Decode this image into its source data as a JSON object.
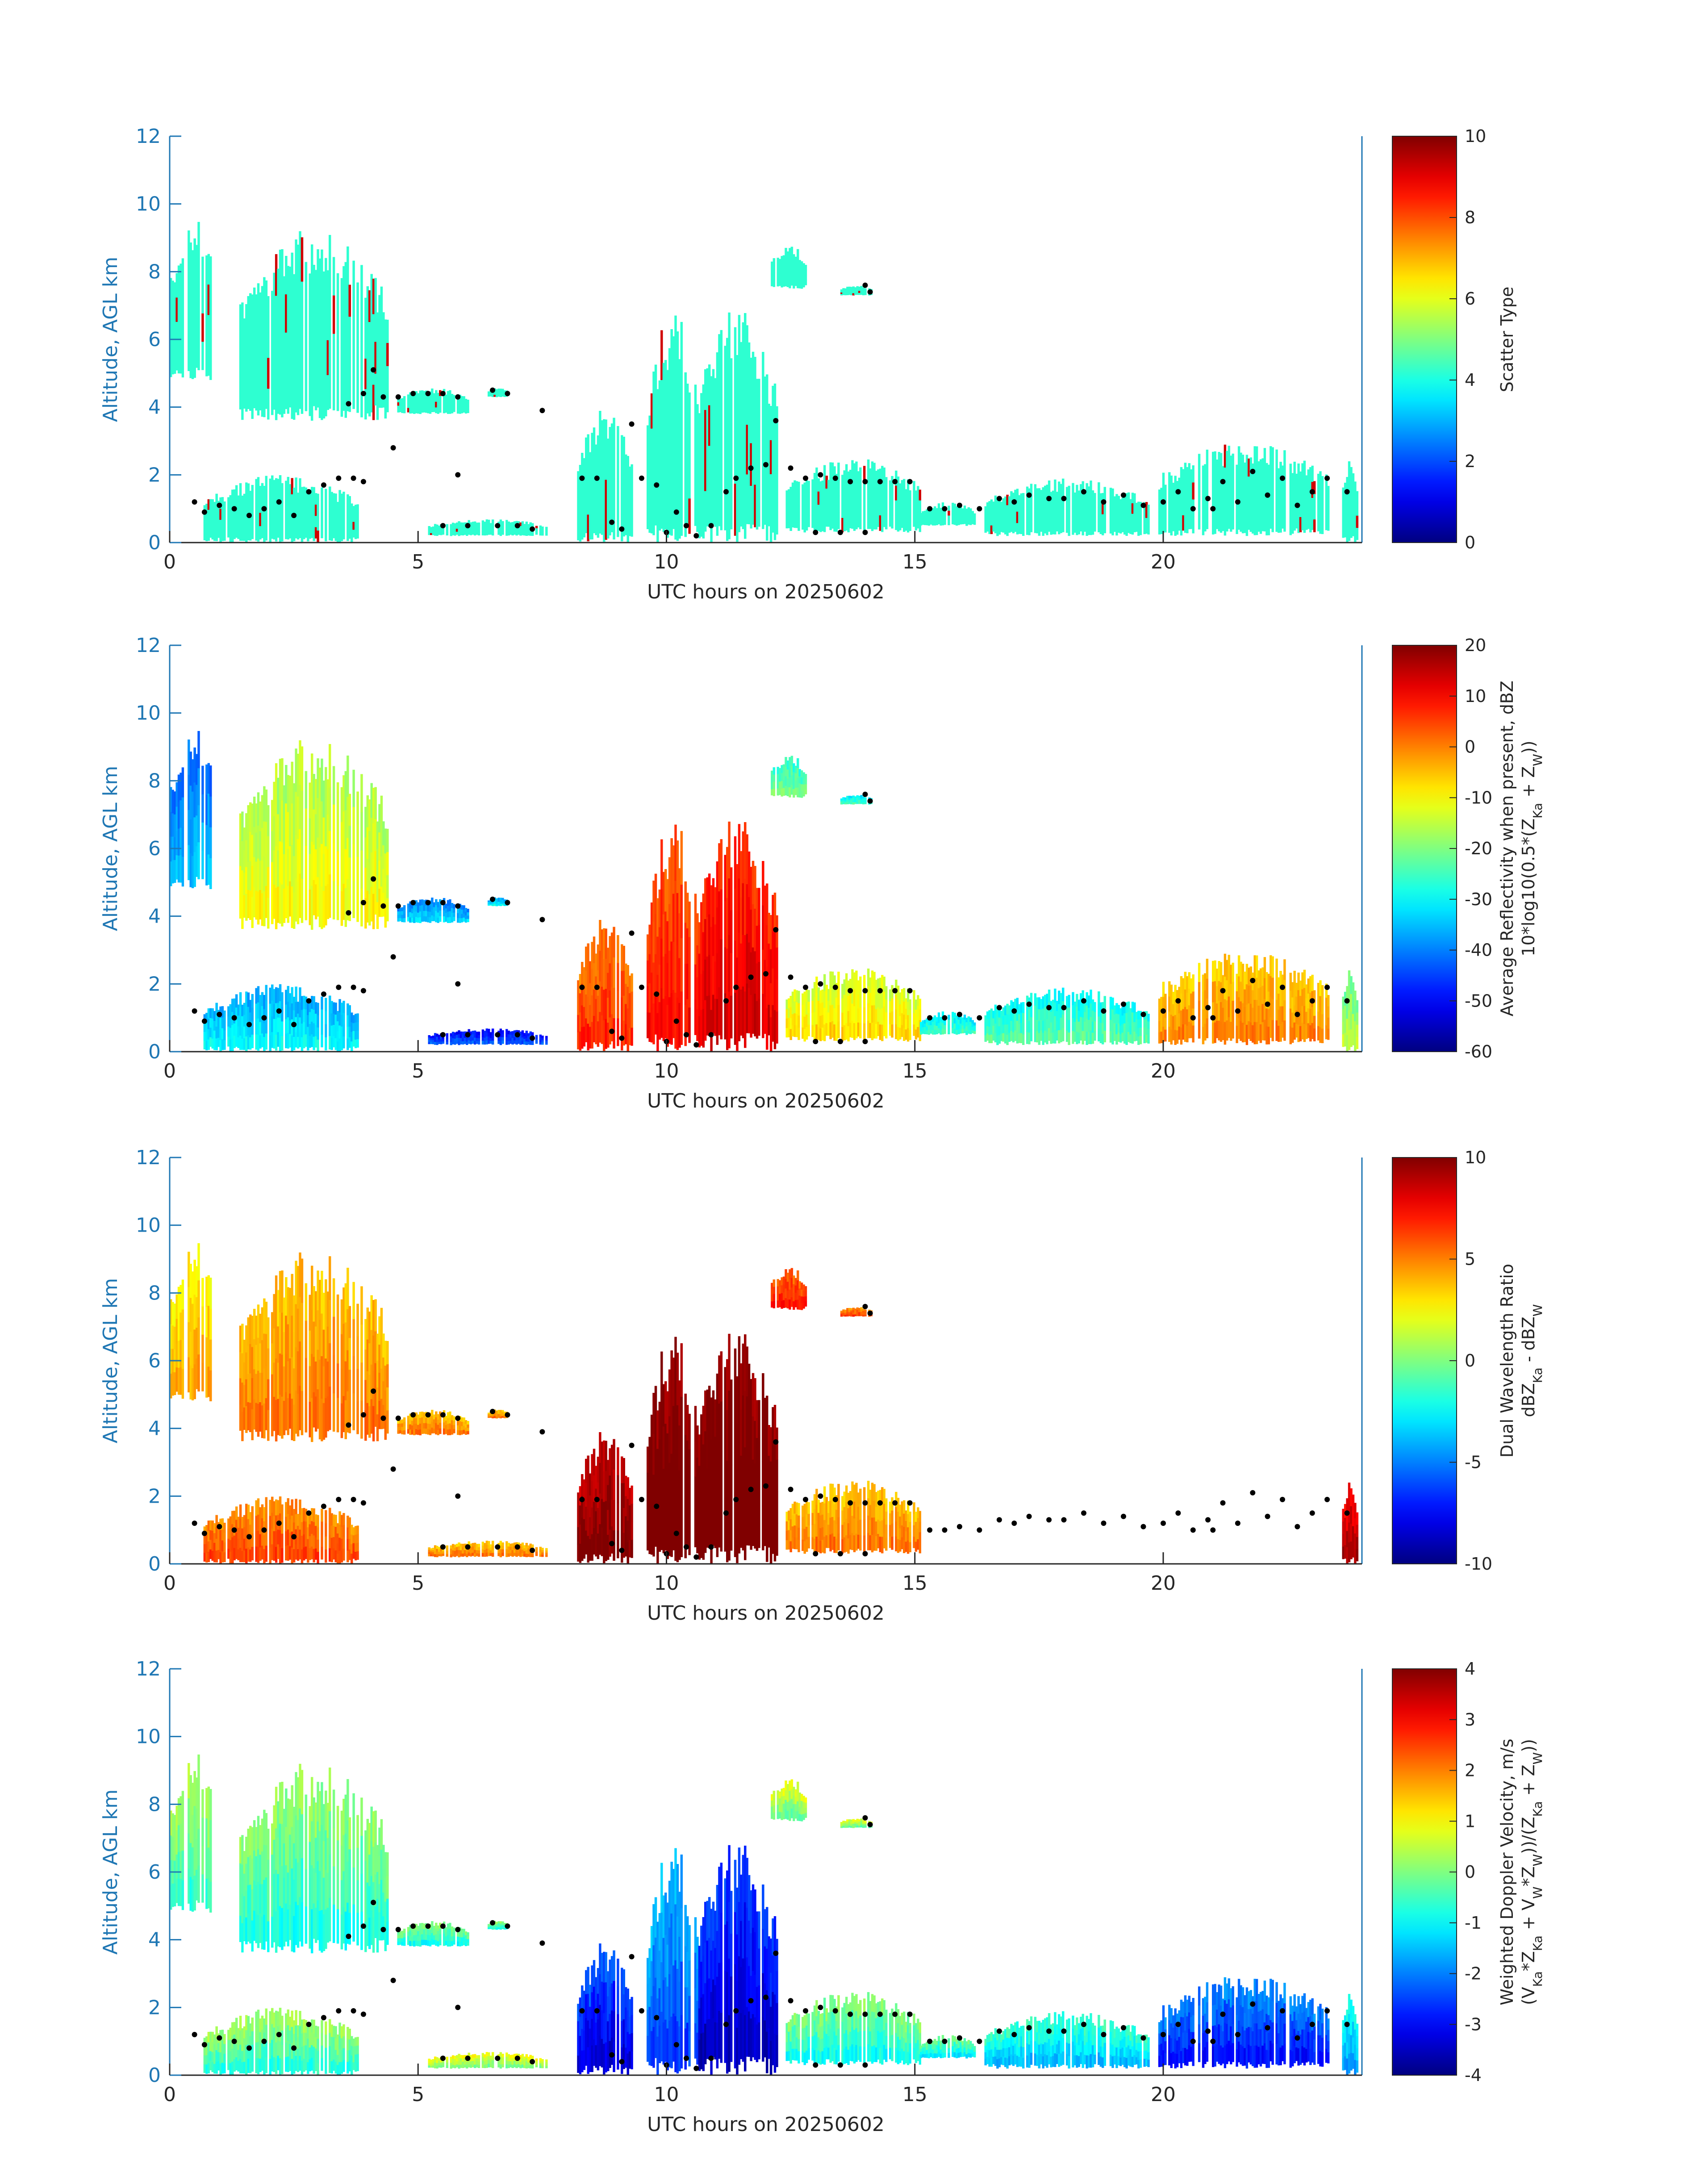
{
  "chart_data": [
    {
      "type": "heatmap",
      "title": "",
      "xlabel": "UTC hours on 20250602",
      "ylabel": "Altitude, AGL km",
      "xlim": [
        0,
        24
      ],
      "ylim": [
        0,
        12
      ],
      "xticks": [
        0,
        5,
        10,
        15,
        20
      ],
      "yticks": [
        0,
        2,
        4,
        6,
        8,
        10,
        12
      ],
      "colorbar": {
        "label_lines": [
          "Scatter Type"
        ],
        "range": [
          0,
          10
        ],
        "ticks": [
          0,
          2,
          4,
          6,
          8,
          10
        ],
        "colormap": "jet"
      },
      "field": "scatter"
    },
    {
      "type": "heatmap",
      "title": "",
      "xlabel": "UTC hours on 20250602",
      "ylabel": "Altitude, AGL km",
      "xlim": [
        0,
        24
      ],
      "ylim": [
        0,
        12
      ],
      "xticks": [
        0,
        5,
        10,
        15,
        20
      ],
      "yticks": [
        0,
        2,
        4,
        6,
        8,
        10,
        12
      ],
      "colorbar": {
        "label_lines": [
          "Average Reflectivity when present, dBZ",
          "10*log10(0.5*(Z_Ka + Z_W))"
        ],
        "range": [
          -60,
          20
        ],
        "ticks": [
          -60,
          -50,
          -40,
          -30,
          -20,
          -10,
          0,
          10,
          20
        ],
        "colormap": "jet"
      },
      "field": "reflectivity"
    },
    {
      "type": "heatmap",
      "title": "",
      "xlabel": "UTC hours on 20250602",
      "ylabel": "Altitude, AGL km",
      "xlim": [
        0,
        24
      ],
      "ylim": [
        0,
        12
      ],
      "xticks": [
        0,
        5,
        10,
        15,
        20
      ],
      "yticks": [
        0,
        2,
        4,
        6,
        8,
        10,
        12
      ],
      "colorbar": {
        "label_lines": [
          "Dual Wavelength Ratio",
          "dBZ_Ka - dBZ_W"
        ],
        "range": [
          -10,
          10
        ],
        "ticks": [
          -10,
          -5,
          0,
          5,
          10
        ],
        "colormap": "jet"
      },
      "field": "dwr"
    },
    {
      "type": "heatmap",
      "title": "",
      "xlabel": "UTC hours on 20250602",
      "ylabel": "Altitude, AGL km",
      "xlim": [
        0,
        24
      ],
      "ylim": [
        0,
        12
      ],
      "xticks": [
        0,
        5,
        10,
        15,
        20
      ],
      "yticks": [
        0,
        2,
        4,
        6,
        8,
        10,
        12
      ],
      "colorbar": {
        "label_lines": [
          "Weighted Doppler Velocity, m/s",
          "(V_Ka*Z_Ka + V_W*Z_W))/(Z_Ka + Z_W))"
        ],
        "range": [
          -4,
          4
        ],
        "ticks": [
          -4,
          -3,
          -2,
          -1,
          0,
          1,
          2,
          3,
          4
        ],
        "colormap": "jet"
      },
      "field": "velocity"
    }
  ],
  "cloud_regions": [
    {
      "t0": 0.0,
      "t1": 0.9,
      "h0": 4.8,
      "h1": 9.6,
      "scatter": 4.2,
      "refl": -40,
      "dwr": 3,
      "vel": -0.3
    },
    {
      "t0": 1.4,
      "t1": 4.4,
      "h0": 3.6,
      "h1": 9.3,
      "scatter": 4.2,
      "refl": -15,
      "dwr": 4,
      "vel": -0.5
    },
    {
      "t0": 4.5,
      "t1": 6.0,
      "h0": 3.8,
      "h1": 4.6,
      "scatter": 4.2,
      "refl": -38,
      "dwr": 4,
      "vel": -0.6
    },
    {
      "t0": 6.4,
      "t1": 6.8,
      "h0": 4.3,
      "h1": 4.6,
      "scatter": 4.2,
      "refl": -35,
      "dwr": 4,
      "vel": -0.5
    },
    {
      "t0": 8.2,
      "t1": 9.3,
      "h0": 0.0,
      "h1": 4.0,
      "scatter": 4.2,
      "refl": 2,
      "dwr": 9,
      "vel": -3.0
    },
    {
      "t0": 9.6,
      "t1": 10.6,
      "h0": 0.0,
      "h1": 6.9,
      "scatter": 4.2,
      "refl": 5,
      "dwr": 10,
      "vel": -2.2
    },
    {
      "t0": 10.6,
      "t1": 12.2,
      "h0": 0.0,
      "h1": 7.0,
      "scatter": 4.2,
      "refl": 8,
      "dwr": 10,
      "vel": -3.2
    },
    {
      "t0": 12.1,
      "t1": 12.8,
      "h0": 7.5,
      "h1": 8.8,
      "scatter": 4.2,
      "refl": -25,
      "dwr": 6,
      "vel": 0.1
    },
    {
      "t0": 13.5,
      "t1": 14.1,
      "h0": 7.3,
      "h1": 7.6,
      "scatter": 4.2,
      "refl": -30,
      "dwr": 5,
      "vel": 0.1
    },
    {
      "t0": 12.4,
      "t1": 15.1,
      "h0": 0.3,
      "h1": 2.5,
      "scatter": 4.2,
      "refl": -12,
      "dwr": 4,
      "vel": -0.6
    },
    {
      "t0": 15.1,
      "t1": 16.2,
      "h0": 0.5,
      "h1": 1.2,
      "scatter": 4.2,
      "refl": -30,
      "dwr": -99,
      "vel": -0.8
    },
    {
      "t0": 16.4,
      "t1": 19.7,
      "h0": 0.2,
      "h1": 1.9,
      "scatter": 4.2,
      "refl": -28,
      "dwr": -99,
      "vel": -1.2
    },
    {
      "t0": 19.9,
      "t1": 23.3,
      "h0": 0.2,
      "h1": 3.0,
      "scatter": 4.2,
      "refl": -5,
      "dwr": -99,
      "vel": -2.6
    },
    {
      "t0": 23.6,
      "t1": 23.9,
      "h0": 0.0,
      "h1": 2.6,
      "scatter": 4.2,
      "refl": -20,
      "dwr": 8,
      "vel": -1.5
    },
    {
      "t0": 0.6,
      "t1": 3.8,
      "h0": 0.0,
      "h1": 2.0,
      "scatter": 4.2,
      "refl": -35,
      "dwr": 5,
      "vel": -0.4
    },
    {
      "t0": 5.2,
      "t1": 7.6,
      "h0": 0.2,
      "h1": 0.7,
      "scatter": 4.2,
      "refl": -48,
      "dwr": 4,
      "vel": 0.3
    }
  ],
  "cloud_base_points": [
    [
      0.5,
      1.2
    ],
    [
      0.7,
      0.9
    ],
    [
      1.0,
      1.1
    ],
    [
      1.3,
      1.0
    ],
    [
      1.6,
      0.8
    ],
    [
      1.9,
      1.0
    ],
    [
      2.2,
      1.2
    ],
    [
      2.5,
      0.8
    ],
    [
      2.8,
      1.5
    ],
    [
      3.1,
      1.7
    ],
    [
      3.4,
      1.9
    ],
    [
      3.7,
      1.9
    ],
    [
      3.9,
      1.8
    ],
    [
      3.6,
      4.1
    ],
    [
      3.9,
      4.4
    ],
    [
      4.1,
      5.1
    ],
    [
      4.3,
      4.3
    ],
    [
      4.6,
      4.3
    ],
    [
      4.9,
      4.4
    ],
    [
      5.2,
      4.4
    ],
    [
      5.5,
      4.4
    ],
    [
      5.8,
      4.3
    ],
    [
      6.5,
      4.5
    ],
    [
      6.8,
      4.4
    ],
    [
      7.5,
      3.9
    ],
    [
      4.5,
      2.8
    ],
    [
      5.8,
      2.0
    ],
    [
      5.5,
      0.5
    ],
    [
      6.0,
      0.5
    ],
    [
      6.6,
      0.5
    ],
    [
      7.0,
      0.5
    ],
    [
      7.3,
      0.4
    ],
    [
      8.3,
      1.9
    ],
    [
      8.6,
      1.9
    ],
    [
      8.9,
      0.6
    ],
    [
      9.1,
      0.4
    ],
    [
      9.3,
      3.5
    ],
    [
      9.5,
      1.9
    ],
    [
      9.8,
      1.7
    ],
    [
      10.0,
      0.3
    ],
    [
      10.2,
      0.9
    ],
    [
      10.4,
      0.5
    ],
    [
      10.6,
      0.2
    ],
    [
      10.9,
      0.5
    ],
    [
      11.2,
      1.5
    ],
    [
      11.4,
      1.9
    ],
    [
      11.7,
      2.2
    ],
    [
      12.0,
      2.3
    ],
    [
      12.2,
      3.6
    ],
    [
      12.5,
      2.2
    ],
    [
      12.8,
      1.9
    ],
    [
      13.1,
      2.0
    ],
    [
      13.4,
      1.9
    ],
    [
      13.7,
      1.8
    ],
    [
      14.0,
      1.8
    ],
    [
      14.3,
      1.8
    ],
    [
      14.6,
      1.8
    ],
    [
      14.9,
      1.8
    ],
    [
      13.0,
      0.3
    ],
    [
      13.5,
      0.3
    ],
    [
      14.0,
      0.3
    ],
    [
      14.1,
      7.4
    ],
    [
      14.0,
      7.6
    ],
    [
      15.3,
      1.0
    ],
    [
      15.6,
      1.0
    ],
    [
      15.9,
      1.1
    ],
    [
      16.3,
      1.0
    ],
    [
      16.7,
      1.3
    ],
    [
      17.0,
      1.2
    ],
    [
      17.3,
      1.4
    ],
    [
      17.7,
      1.3
    ],
    [
      18.0,
      1.3
    ],
    [
      18.4,
      1.5
    ],
    [
      18.8,
      1.2
    ],
    [
      19.2,
      1.4
    ],
    [
      19.6,
      1.1
    ],
    [
      20.0,
      1.2
    ],
    [
      20.3,
      1.5
    ],
    [
      20.6,
      1.0
    ],
    [
      20.9,
      1.3
    ],
    [
      21.2,
      1.8
    ],
    [
      21.5,
      1.2
    ],
    [
      21.8,
      2.1
    ],
    [
      22.1,
      1.4
    ],
    [
      22.4,
      1.9
    ],
    [
      22.7,
      1.1
    ],
    [
      23.0,
      1.5
    ],
    [
      23.3,
      1.9
    ],
    [
      23.7,
      1.5
    ],
    [
      21.0,
      1.0
    ]
  ]
}
